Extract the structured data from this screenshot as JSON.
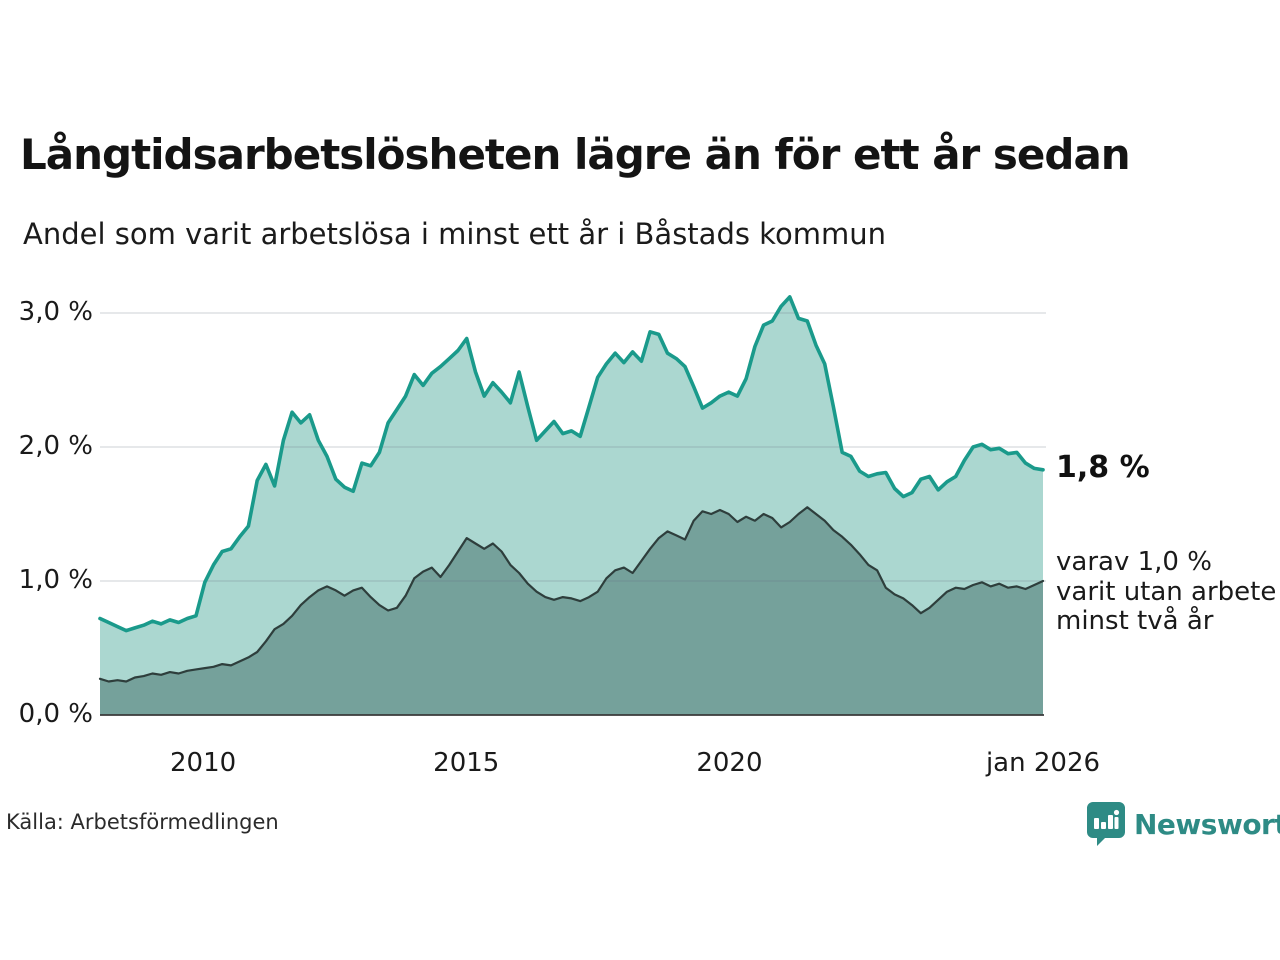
{
  "header": {
    "title": "Långtidsarbetslösheten lägre än för ett år sedan",
    "subtitle": "Andel som varit arbetslösa i minst ett år i Båstads kommun"
  },
  "annotations": {
    "latest_value": "1,8 %",
    "secondary_lines": [
      "varav 1,0 %",
      "varit utan arbete",
      "minst två år"
    ]
  },
  "footer": {
    "source": "Källa: Arbetsförmedlingen",
    "brand": "Newsworthy"
  },
  "colors": {
    "line_total": "#1a9a8b",
    "fill_total": "#abd7d0",
    "line_two_years": "#2e3e3c",
    "fill_two_years": "#75a19b",
    "gridline": "rgba(105,112,132,0.22)",
    "baseline": "#3a3a3a",
    "brand_teal": "#2e8b85"
  },
  "chart_data": {
    "type": "area",
    "title": "Långtidsarbetslösheten lägre än för ett år sedan",
    "subtitle": "Andel som varit arbetslösa i minst ett år i Båstads kommun",
    "unit": "%",
    "x_range": {
      "start": 2008.083,
      "end": 2026.0
    },
    "ylim": [
      0,
      3.25
    ],
    "grid": "horizontal",
    "legend_position": "right-annotations",
    "x_ticks": [
      {
        "label": "2010",
        "year": 2010.042
      },
      {
        "label": "2015",
        "year": 2015.042
      },
      {
        "label": "2020",
        "year": 2020.042
      },
      {
        "label": "jan 2026",
        "year": 2026.0
      }
    ],
    "y_ticks": [
      {
        "label": "0,0 %",
        "value": 0
      },
      {
        "label": "1,0 %",
        "value": 1
      },
      {
        "label": "2,0 %",
        "value": 2
      },
      {
        "label": "3,0 %",
        "value": 3
      }
    ],
    "series": [
      {
        "name": "Andel som varit arbetslösa i minst ett år",
        "end_label": "1,8 %",
        "values": [
          0.72,
          0.69,
          0.66,
          0.63,
          0.65,
          0.67,
          0.7,
          0.68,
          0.71,
          0.69,
          0.72,
          0.74,
          0.99,
          1.12,
          1.22,
          1.24,
          1.33,
          1.41,
          1.75,
          1.87,
          1.71,
          2.05,
          2.26,
          2.18,
          2.24,
          2.05,
          1.93,
          1.76,
          1.7,
          1.67,
          1.88,
          1.86,
          1.96,
          2.18,
          2.28,
          2.38,
          2.54,
          2.46,
          2.55,
          2.6,
          2.66,
          2.72,
          2.81,
          2.56,
          2.38,
          2.48,
          2.41,
          2.33,
          2.56,
          2.3,
          2.05,
          2.12,
          2.19,
          2.1,
          2.12,
          2.08,
          2.3,
          2.52,
          2.62,
          2.7,
          2.63,
          2.71,
          2.64,
          2.86,
          2.84,
          2.7,
          2.66,
          2.6,
          2.45,
          2.29,
          2.33,
          2.38,
          2.41,
          2.38,
          2.51,
          2.75,
          2.91,
          2.94,
          3.05,
          3.12,
          2.96,
          2.94,
          2.76,
          2.62,
          2.3,
          1.96,
          1.93,
          1.82,
          1.78,
          1.8,
          1.81,
          1.69,
          1.63,
          1.66,
          1.76,
          1.78,
          1.68,
          1.74,
          1.78,
          1.9,
          2.0,
          2.02,
          1.98,
          1.99,
          1.95,
          1.96,
          1.88,
          1.84,
          1.83
        ]
      },
      {
        "name": "varav utan arbete minst två år",
        "end_label": "varav 1,0 % varit utan arbete minst två år",
        "values": [
          0.27,
          0.25,
          0.26,
          0.25,
          0.28,
          0.29,
          0.31,
          0.3,
          0.32,
          0.31,
          0.33,
          0.34,
          0.35,
          0.36,
          0.38,
          0.37,
          0.4,
          0.43,
          0.47,
          0.55,
          0.64,
          0.68,
          0.74,
          0.82,
          0.88,
          0.93,
          0.96,
          0.93,
          0.89,
          0.93,
          0.95,
          0.88,
          0.82,
          0.78,
          0.8,
          0.89,
          1.02,
          1.07,
          1.1,
          1.03,
          1.12,
          1.22,
          1.32,
          1.28,
          1.24,
          1.28,
          1.22,
          1.12,
          1.06,
          0.98,
          0.92,
          0.88,
          0.86,
          0.88,
          0.87,
          0.85,
          0.88,
          0.92,
          1.02,
          1.08,
          1.1,
          1.06,
          1.15,
          1.24,
          1.32,
          1.37,
          1.34,
          1.31,
          1.45,
          1.52,
          1.5,
          1.53,
          1.5,
          1.44,
          1.48,
          1.45,
          1.5,
          1.47,
          1.4,
          1.44,
          1.5,
          1.55,
          1.5,
          1.45,
          1.38,
          1.33,
          1.27,
          1.2,
          1.12,
          1.08,
          0.95,
          0.9,
          0.87,
          0.82,
          0.76,
          0.8,
          0.86,
          0.92,
          0.95,
          0.94,
          0.97,
          0.99,
          0.96,
          0.98,
          0.95,
          0.96,
          0.94,
          0.97,
          1.0
        ]
      }
    ]
  }
}
